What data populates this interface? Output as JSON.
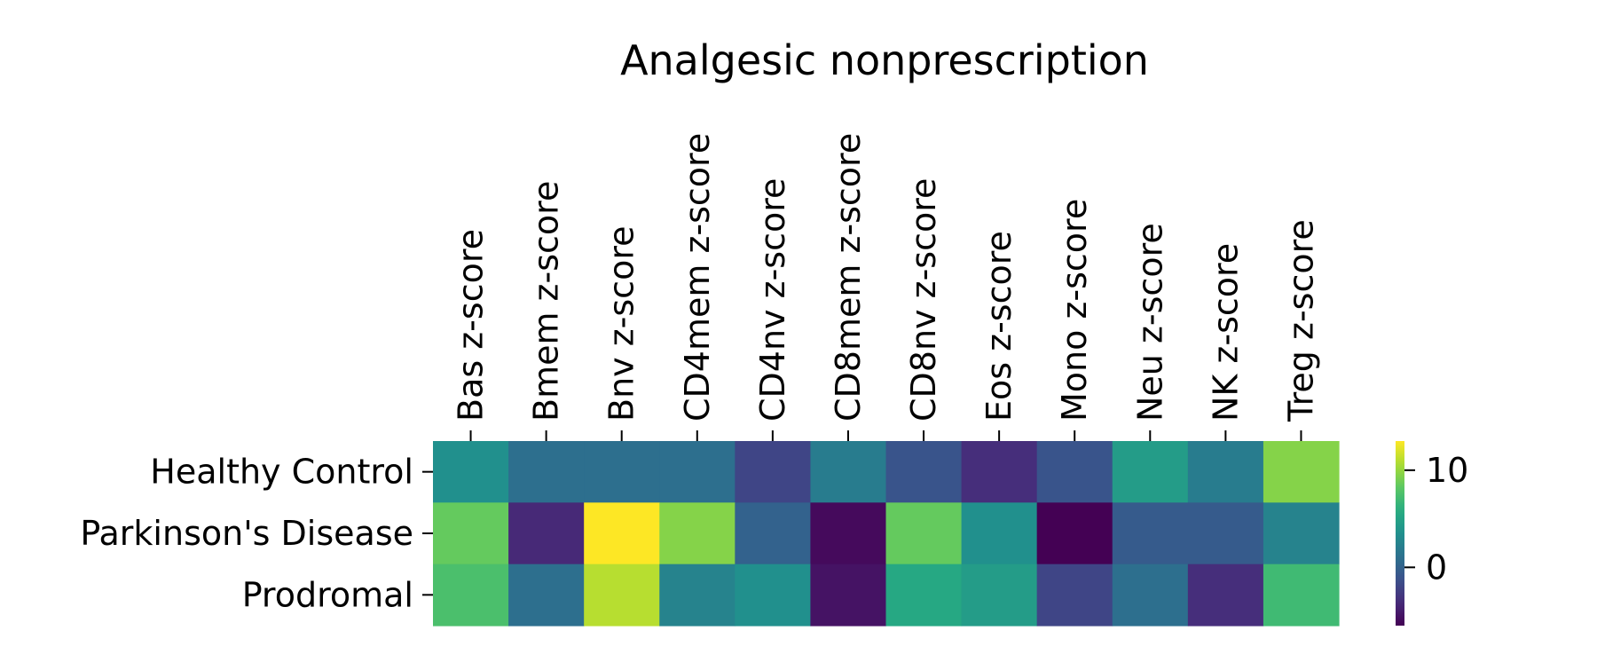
{
  "chart_data": {
    "type": "heatmap",
    "title": "Analgesic nonprescription",
    "columns": [
      "Bas z-score",
      "Bmem z-score",
      "Bnv z-score",
      "CD4mem z-score",
      "CD4nv z-score",
      "CD8mem z-score",
      "CD8nv z-score",
      "Eos z-score",
      "Mono z-score",
      "Neu z-score",
      "NK z-score",
      "Treg z-score"
    ],
    "rows": [
      "Healthy Control",
      "Parkinson's Disease",
      "Prodromal"
    ],
    "values": [
      [
        3.5,
        1.0,
        1.0,
        1.0,
        -2.0,
        2.0,
        -1.0,
        -3.5,
        -1.0,
        4.5,
        2.0,
        9.5
      ],
      [
        8.5,
        -3.8,
        13.0,
        9.5,
        0.0,
        -5.5,
        8.5,
        3.5,
        -6.0,
        -0.5,
        -0.5,
        2.5
      ],
      [
        7.5,
        1.0,
        11.0,
        2.5,
        3.5,
        -5.0,
        5.5,
        4.5,
        -2.0,
        1.0,
        -3.5,
        7.0
      ]
    ],
    "colormap": "viridis",
    "vmin": -6,
    "vmax": 13,
    "colorbar": {
      "ticks": [
        0,
        10
      ],
      "tick_labels": [
        "0",
        "10"
      ]
    },
    "xlabel": "",
    "ylabel": "",
    "x_tick_position": "top",
    "grid": false
  }
}
